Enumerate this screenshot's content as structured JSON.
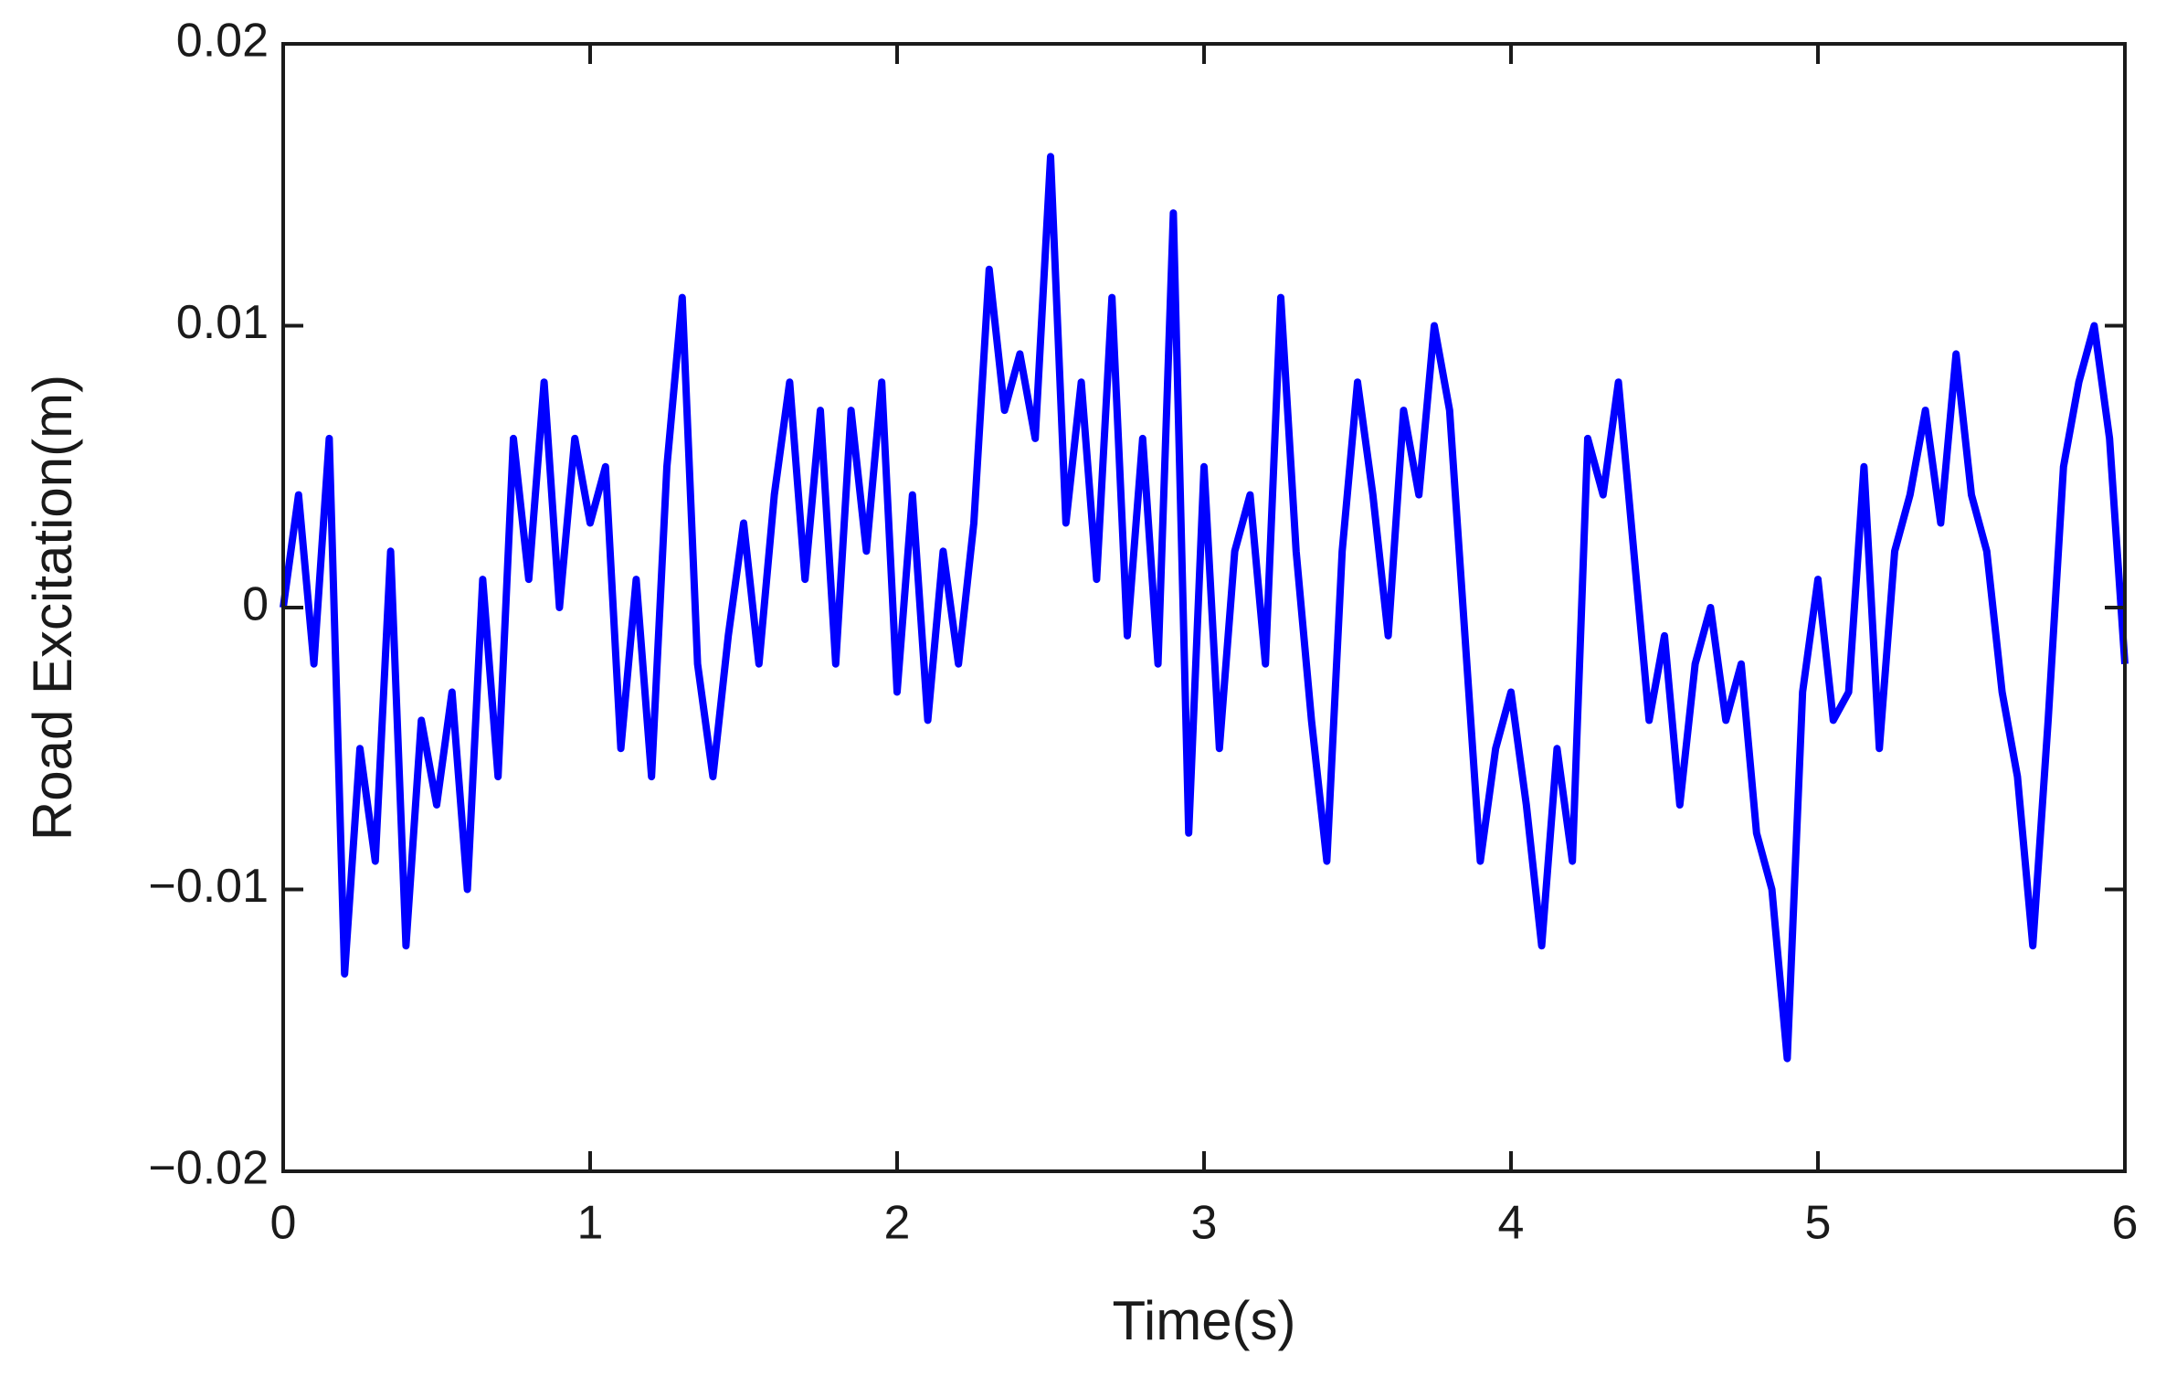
{
  "chart_data": {
    "type": "line",
    "xlabel": "Time(s)",
    "ylabel": "Road Excitation(m)",
    "x": [
      0,
      0.05,
      0.1,
      0.15,
      0.2,
      0.25,
      0.3,
      0.35,
      0.4,
      0.45,
      0.5,
      0.55,
      0.6,
      0.65,
      0.7,
      0.75,
      0.8,
      0.85,
      0.9,
      0.95,
      1.0,
      1.05,
      1.1,
      1.15,
      1.2,
      1.25,
      1.3,
      1.35,
      1.4,
      1.45,
      1.5,
      1.55,
      1.6,
      1.65,
      1.7,
      1.75,
      1.8,
      1.85,
      1.9,
      1.95,
      2.0,
      2.05,
      2.1,
      2.15,
      2.2,
      2.25,
      2.3,
      2.35,
      2.4,
      2.45,
      2.5,
      2.55,
      2.6,
      2.65,
      2.7,
      2.75,
      2.8,
      2.85,
      2.9,
      2.95,
      3.0,
      3.05,
      3.1,
      3.15,
      3.2,
      3.25,
      3.3,
      3.35,
      3.4,
      3.45,
      3.5,
      3.55,
      3.6,
      3.65,
      3.7,
      3.75,
      3.8,
      3.85,
      3.9,
      3.95,
      4.0,
      4.05,
      4.1,
      4.15,
      4.2,
      4.25,
      4.3,
      4.35,
      4.4,
      4.45,
      4.5,
      4.55,
      4.6,
      4.65,
      4.7,
      4.75,
      4.8,
      4.85,
      4.9,
      4.95,
      5.0,
      5.05,
      5.1,
      5.15,
      5.2,
      5.25,
      5.3,
      5.35,
      5.4,
      5.45,
      5.5,
      5.55,
      5.6,
      5.65,
      5.7,
      5.75,
      5.8,
      5.85,
      5.9,
      5.95,
      6.0
    ],
    "series": [
      {
        "name": "Road Excitation",
        "color": "#0000ff",
        "values": [
          0.0,
          0.004,
          -0.002,
          0.006,
          -0.013,
          -0.005,
          -0.009,
          0.002,
          -0.012,
          -0.004,
          -0.007,
          -0.003,
          -0.01,
          0.001,
          -0.006,
          0.006,
          0.001,
          0.008,
          0.0,
          0.006,
          0.003,
          0.005,
          -0.005,
          0.001,
          -0.006,
          0.005,
          0.011,
          -0.002,
          -0.006,
          -0.001,
          0.003,
          -0.002,
          0.004,
          0.008,
          0.001,
          0.007,
          -0.002,
          0.007,
          0.002,
          0.008,
          -0.003,
          0.004,
          -0.004,
          0.002,
          -0.002,
          0.003,
          0.012,
          0.007,
          0.009,
          0.006,
          0.016,
          0.003,
          0.008,
          0.001,
          0.011,
          -0.001,
          0.006,
          -0.002,
          0.014,
          -0.008,
          0.005,
          -0.005,
          0.002,
          0.004,
          -0.002,
          0.011,
          0.002,
          -0.004,
          -0.009,
          0.002,
          0.008,
          0.004,
          -0.001,
          0.007,
          0.004,
          0.01,
          0.007,
          -0.001,
          -0.009,
          -0.005,
          -0.003,
          -0.007,
          -0.012,
          -0.005,
          -0.009,
          0.006,
          0.004,
          0.008,
          0.002,
          -0.004,
          -0.001,
          -0.007,
          -0.002,
          0.0,
          -0.004,
          -0.002,
          -0.008,
          -0.01,
          -0.016,
          -0.003,
          0.001,
          -0.004,
          -0.003,
          0.005,
          -0.005,
          0.002,
          0.004,
          0.007,
          0.003,
          0.009,
          0.004,
          0.002,
          -0.003,
          -0.006,
          -0.012,
          -0.004,
          0.005,
          0.008,
          0.01,
          0.006,
          -0.002
        ]
      }
    ],
    "xlim": [
      0,
      6
    ],
    "xticks": [
      0,
      1,
      2,
      3,
      4,
      5,
      6
    ],
    "ylim": [
      -0.02,
      0.02
    ],
    "yticks": [
      {
        "value": -0.02,
        "label": "−0.02"
      },
      {
        "value": -0.01,
        "label": "−0.01"
      },
      0,
      0.01,
      0.02
    ],
    "grid": false
  }
}
